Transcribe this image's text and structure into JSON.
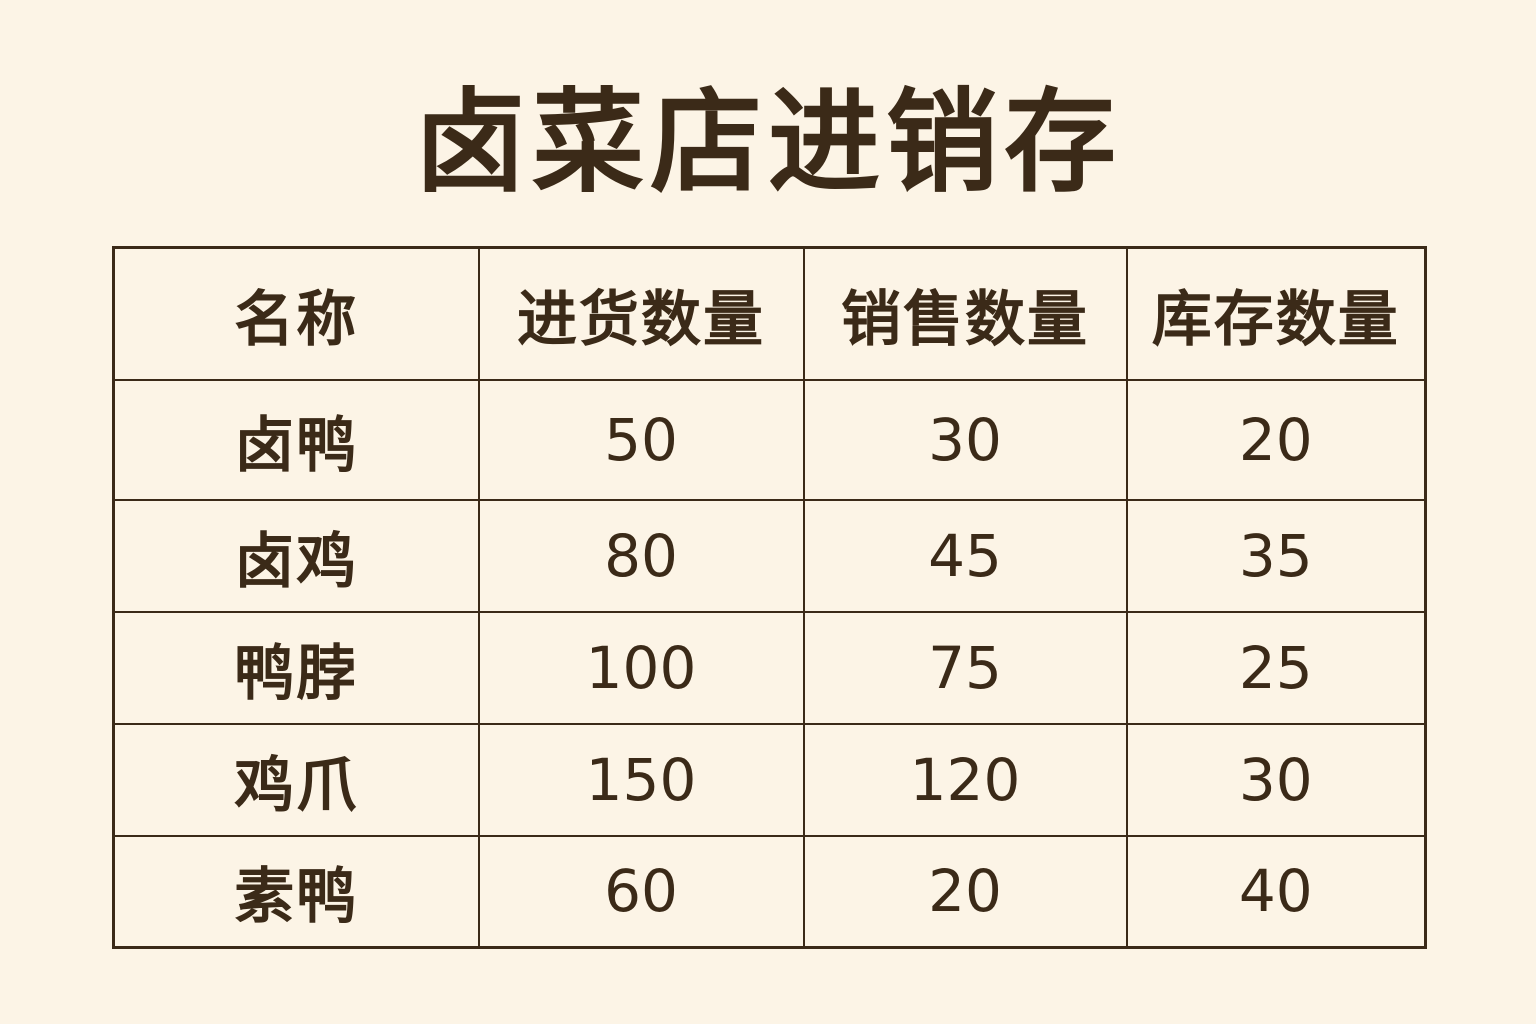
{
  "title": "卤菜店进销存",
  "colors": {
    "background": "#fcf4e6",
    "text": "#3b2a18"
  },
  "table": {
    "headers": [
      "名称",
      "进货数量",
      "销售数量",
      "库存数量"
    ],
    "rows": [
      [
        "卤鸭",
        "50",
        "30",
        "20"
      ],
      [
        "卤鸡",
        "80",
        "45",
        "35"
      ],
      [
        "鸭脖",
        "100",
        "75",
        "25"
      ],
      [
        "鸡爪",
        "150",
        "120",
        "30"
      ],
      [
        "素鸭",
        "60",
        "20",
        "40"
      ]
    ]
  }
}
